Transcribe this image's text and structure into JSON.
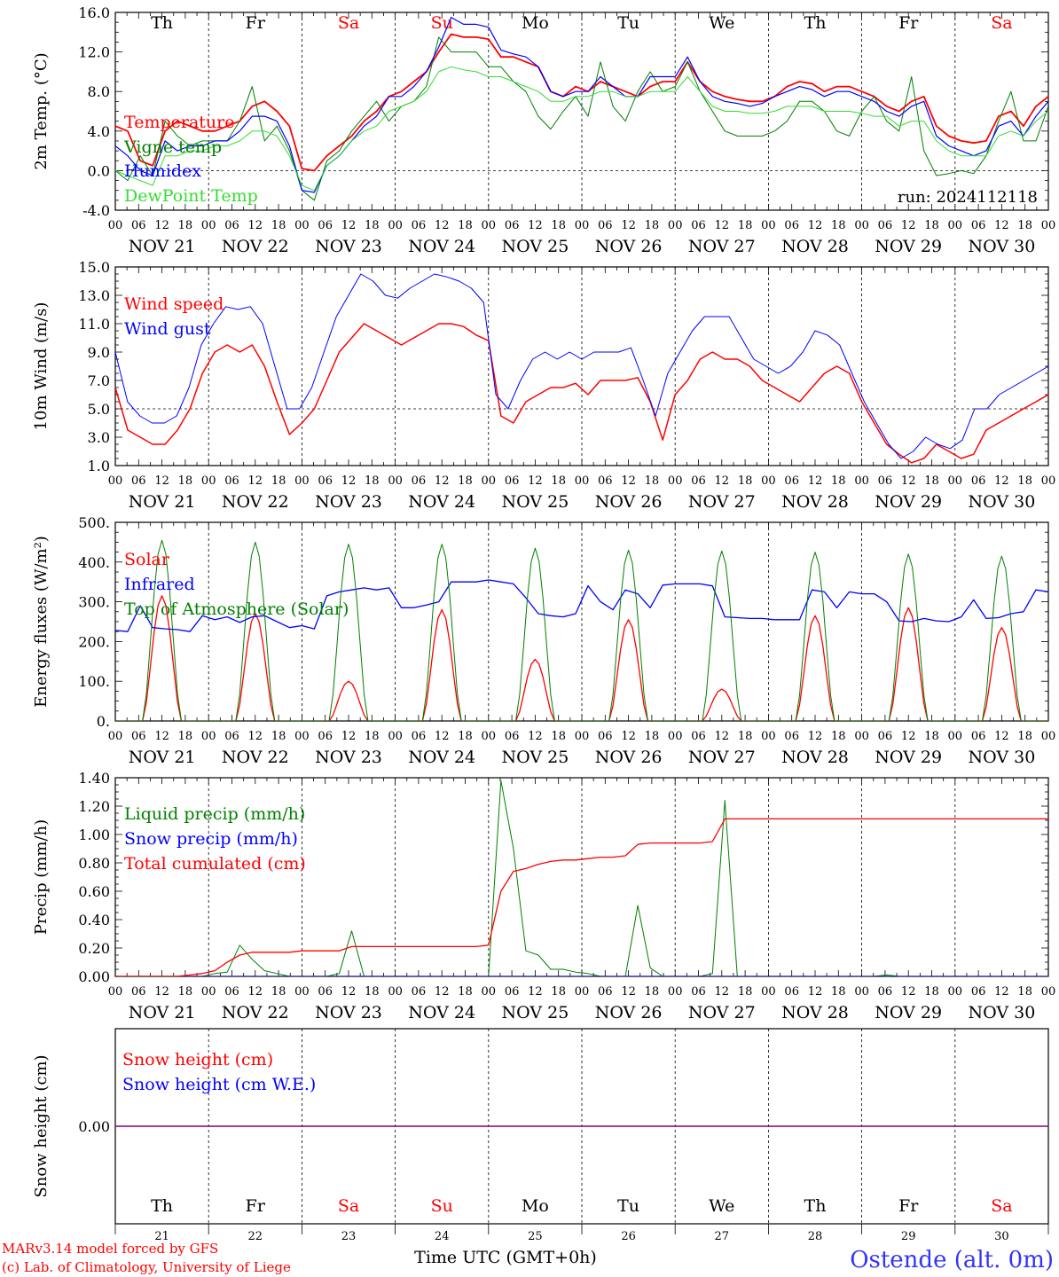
{
  "days": [
    "Th",
    "Fr",
    "Sa",
    "Su",
    "Mo",
    "Tu",
    "We",
    "Th",
    "Fr",
    "Sa"
  ],
  "weekend_flags": [
    false,
    false,
    true,
    true,
    false,
    false,
    false,
    false,
    false,
    true
  ],
  "dates": [
    "NOV 21",
    "NOV 22",
    "NOV 23",
    "NOV 24",
    "NOV 25",
    "NOV 26",
    "NOV 27",
    "NOV 28",
    "NOV 29",
    "NOV 30"
  ],
  "day_numbers": [
    "21",
    "22",
    "23",
    "24",
    "25",
    "26",
    "27",
    "28",
    "29",
    "30"
  ],
  "hour_ticks": [
    "00",
    "06",
    "12",
    "18"
  ],
  "hour_tick_last": "00",
  "colors": {
    "red": "#ff0000",
    "darkgreen": "#007f00",
    "blue": "#0000ff",
    "lightgreen": "#33dd33",
    "purple": "#7f007f"
  },
  "run_label": "run: 2024112118",
  "footer": {
    "credit1": "MARv3.14 model forced by GFS",
    "credit2": "(c) Lab. of Climatology, University of Liege",
    "xlabel": "Time UTC (GMT+0h)",
    "station": "Ostende (alt. 0m)"
  },
  "chart_data": [
    {
      "type": "line",
      "id": "temp",
      "ylabel": "2m Temp. (°C)",
      "ylim": [
        -4,
        16
      ],
      "yticks": [
        "-4.0",
        "0.0",
        "4.0",
        "8.0",
        "12.0",
        "16.0"
      ],
      "ytick_values": [
        -4,
        0,
        4,
        8,
        12,
        16
      ],
      "ref_line": 0,
      "x_hours_step": 6,
      "series": [
        {
          "name": "Temperature",
          "color": "red",
          "width": 1.8,
          "values": [
            4.5,
            4,
            1,
            0.5,
            4,
            5,
            4.5,
            4,
            4,
            4.5,
            5,
            6.5,
            7,
            6,
            4.5,
            0.2,
            0,
            1.5,
            2.5,
            3.5,
            5,
            6,
            7.5,
            8,
            9,
            10,
            12,
            13.8,
            13.5,
            13.5,
            13.3,
            11.5,
            11.5,
            11,
            10.5,
            8,
            7.5,
            8.5,
            8,
            9,
            8.5,
            8,
            7.5,
            8.5,
            9,
            9,
            11,
            9,
            8,
            7.5,
            7.2,
            7,
            7,
            7.5,
            8.5,
            9,
            8.8,
            8,
            8.5,
            8.5,
            8,
            7.5,
            6.5,
            6,
            7,
            7.5,
            4.5,
            3.5,
            3,
            2.8,
            3,
            5.5,
            6,
            4.5,
            6.5,
            7.5
          ]
        },
        {
          "name": "Vigne temp",
          "color": "darkgreen",
          "width": 1.0,
          "values": [
            0,
            -1,
            1.5,
            -0.5,
            5,
            3.5,
            2.5,
            3,
            3,
            3,
            5,
            8.5,
            3,
            4.5,
            2,
            -2,
            -3,
            1,
            2,
            4,
            5.5,
            7,
            5,
            6.5,
            7,
            8.5,
            13.5,
            12,
            12,
            12,
            10.5,
            10.5,
            9,
            8,
            5.5,
            4.2,
            6,
            7.5,
            5.5,
            11,
            6.5,
            5,
            8,
            10,
            8,
            8.5,
            11,
            8,
            6,
            4,
            3.5,
            3.5,
            3.5,
            4,
            5,
            7,
            7,
            6,
            4,
            3.5,
            6,
            7.5,
            5,
            4,
            9.5,
            2,
            -0.5,
            -0.3,
            0,
            -0.3,
            1.5,
            5,
            8,
            3,
            3,
            6.5
          ]
        },
        {
          "name": "Humidex",
          "color": "blue",
          "width": 1.2,
          "values": [
            2.5,
            1.5,
            0,
            -0.5,
            3,
            2,
            2.5,
            2.5,
            3,
            3,
            4,
            5.5,
            5.5,
            5,
            2.5,
            -2,
            -2.2,
            0.5,
            1.5,
            3,
            4.5,
            5.5,
            7.5,
            7.5,
            8.5,
            10,
            12.5,
            15.5,
            14.8,
            14.8,
            14.5,
            12.2,
            11.8,
            11.5,
            10.5,
            8,
            7.5,
            8,
            8,
            9.5,
            8.5,
            7.5,
            7.5,
            9.5,
            9.5,
            9.5,
            11.5,
            9,
            7.5,
            7,
            6.8,
            6.5,
            6.8,
            7.5,
            8,
            8.5,
            8.2,
            7.5,
            8,
            8,
            7.5,
            7,
            6,
            5.5,
            6.5,
            7,
            3.5,
            2.5,
            2,
            1.5,
            2,
            4.5,
            5,
            3.5,
            5.5,
            7
          ]
        },
        {
          "name": "DewPoint Temp",
          "color": "lightgreen",
          "width": 1.0,
          "values": [
            0,
            -0.5,
            -1,
            -1.5,
            1.5,
            1.5,
            2,
            2,
            2.5,
            2.5,
            3,
            4,
            4,
            3.5,
            1.5,
            -1.5,
            -2,
            0.5,
            1.5,
            3,
            4,
            4.5,
            6,
            6.5,
            7,
            8,
            10,
            10.5,
            10.2,
            10,
            9.5,
            9.5,
            9,
            8.5,
            8,
            7,
            7,
            7.5,
            7.5,
            8,
            8,
            7.5,
            7.5,
            8,
            8,
            8,
            9.5,
            8,
            6.5,
            6,
            6,
            5.8,
            5.8,
            6,
            6.5,
            6.5,
            6.5,
            6,
            6,
            6,
            5.8,
            5.5,
            5.5,
            4.5,
            5,
            5,
            3,
            2,
            1.5,
            1.5,
            1.5,
            3.5,
            4,
            3.5,
            5,
            6
          ]
        }
      ]
    },
    {
      "type": "line",
      "id": "wind",
      "ylabel": "10m Wind (m/s)",
      "ylim": [
        1,
        15
      ],
      "yticks": [
        "1.0",
        "3.0",
        "5.0",
        "7.0",
        "9.0",
        "11.0",
        "13.0",
        "15.0"
      ],
      "ytick_values": [
        1,
        3,
        5,
        7,
        9,
        11,
        13,
        15
      ],
      "ref_line": 5,
      "x_hours_step": 6,
      "series": [
        {
          "name": "Wind speed",
          "color": "red",
          "width": 1.5,
          "values": [
            6.5,
            3.5,
            3,
            2.5,
            2.5,
            3.5,
            5,
            7.5,
            9,
            9.5,
            9,
            9.5,
            8,
            5.5,
            3.2,
            4,
            5,
            7,
            9,
            10,
            11,
            10.5,
            10,
            9.5,
            10,
            10.5,
            11,
            11,
            10.8,
            10.2,
            9.8,
            4.5,
            4,
            5.5,
            6,
            6.5,
            6.5,
            6.8,
            6,
            7,
            7,
            7,
            7.2,
            5.5,
            2.8,
            6,
            7,
            8.5,
            9,
            8.5,
            8.5,
            8,
            7,
            6.5,
            6,
            5.5,
            6.5,
            7.5,
            8,
            7.5,
            5.5,
            4,
            2.5,
            1.8,
            1.2,
            1.5,
            2.5,
            2,
            1.5,
            1.8,
            3.5,
            4,
            4.5,
            5,
            5.5,
            6
          ]
        },
        {
          "name": "Wind gust",
          "color": "blue",
          "width": 1.0,
          "values": [
            9,
            5.5,
            4.5,
            4,
            4,
            4.5,
            6.5,
            9.5,
            11,
            12.2,
            12,
            12.2,
            11,
            8,
            5,
            5,
            6.5,
            9,
            11.5,
            13,
            14.5,
            14,
            13,
            12.8,
            13.5,
            14,
            14.5,
            14.3,
            14,
            13.5,
            12.5,
            6,
            5,
            7,
            8.5,
            9,
            8.5,
            9,
            8.5,
            9,
            9,
            9,
            9.3,
            7,
            4.5,
            7.5,
            9,
            10.5,
            11.5,
            11.5,
            11.5,
            10,
            8.5,
            8,
            7.5,
            8,
            9,
            10.5,
            10.2,
            9.5,
            7.5,
            5.5,
            4,
            2.5,
            1.5,
            2,
            3,
            2.5,
            2.2,
            2.8,
            5,
            5,
            6,
            6.5,
            7,
            7.5,
            8
          ]
        }
      ]
    },
    {
      "type": "line",
      "id": "energy",
      "ylabel": "Energy fluxes (W/m²)",
      "ylim": [
        0,
        500
      ],
      "yticks": [
        "0.",
        "100.",
        "200.",
        "300.",
        "400.",
        "500."
      ],
      "ytick_values": [
        0,
        100,
        200,
        300,
        400,
        500
      ],
      "ref_line": null,
      "x_hours_step": 6,
      "series": [
        {
          "name": "Solar",
          "color": "red",
          "width": 1.3,
          "day_peaks": [
            315,
            270,
            100,
            280,
            155,
            255,
            80,
            265,
            285,
            235
          ]
        },
        {
          "name": "Infrared",
          "color": "blue",
          "width": 1.3,
          "values": [
            228,
            225,
            290,
            235,
            232,
            230,
            225,
            265,
            255,
            262,
            248,
            262,
            265,
            250,
            235,
            240,
            232,
            315,
            325,
            330,
            335,
            330,
            335,
            285,
            285,
            292,
            300,
            350,
            350,
            350,
            355,
            350,
            345,
            310,
            270,
            265,
            262,
            270,
            340,
            300,
            280,
            330,
            320,
            285,
            342,
            345,
            345,
            345,
            340,
            262,
            260,
            258,
            258,
            255,
            255,
            255,
            330,
            325,
            285,
            325,
            320,
            320,
            300,
            252,
            250,
            258,
            252,
            250,
            262,
            305,
            258,
            260,
            270,
            275,
            330,
            325
          ]
        },
        {
          "name": "Top of Atmosphere (Solar)",
          "color": "darkgreen",
          "width": 1.0,
          "day_peaks": [
            455,
            450,
            445,
            445,
            435,
            430,
            428,
            425,
            420,
            415
          ]
        }
      ]
    },
    {
      "type": "line",
      "id": "precip",
      "ylabel": "Precip (mm/h)",
      "ylim": [
        0,
        1.4
      ],
      "yticks": [
        "0.00",
        "0.20",
        "0.40",
        "0.60",
        "0.80",
        "1.00",
        "1.20",
        "1.40"
      ],
      "ytick_values": [
        0,
        0.2,
        0.4,
        0.6,
        0.8,
        1.0,
        1.2,
        1.4
      ],
      "ref_line": null,
      "x_hours_step": 6,
      "series": [
        {
          "name": "Liquid precip (mm/h)",
          "color": "darkgreen",
          "width": 1.0,
          "values": [
            0,
            0,
            0,
            0,
            0,
            0,
            0,
            0,
            0.02,
            0.03,
            0.22,
            0.12,
            0.04,
            0.02,
            0,
            0,
            0,
            0,
            0.02,
            0.32,
            0,
            0,
            0,
            0,
            0,
            0,
            0,
            0,
            0,
            0,
            0,
            1.38,
            0.9,
            0.18,
            0.15,
            0.05,
            0.05,
            0.03,
            0.02,
            0,
            0,
            0,
            0.5,
            0.06,
            0,
            0,
            0,
            0,
            0.02,
            1.24,
            0,
            0,
            0,
            0,
            0,
            0,
            0,
            0,
            0,
            0,
            0,
            0,
            0.01,
            0,
            0,
            0,
            0,
            0,
            0,
            0,
            0,
            0,
            0,
            0,
            0,
            0
          ]
        },
        {
          "name": "Snow precip (mm/h)",
          "color": "blue",
          "width": 1.0,
          "values": [
            0,
            0,
            0,
            0,
            0,
            0,
            0,
            0,
            0,
            0,
            0,
            0,
            0,
            0,
            0,
            0,
            0,
            0,
            0,
            0,
            0,
            0,
            0,
            0,
            0,
            0,
            0,
            0,
            0,
            0,
            0,
            0,
            0,
            0,
            0,
            0,
            0,
            0,
            0,
            0,
            0,
            0,
            0,
            0,
            0,
            0,
            0,
            0,
            0,
            0,
            0,
            0,
            0,
            0,
            0,
            0,
            0,
            0,
            0,
            0,
            0,
            0,
            0,
            0,
            0,
            0,
            0,
            0,
            0,
            0,
            0,
            0,
            0,
            0,
            0,
            0
          ]
        },
        {
          "name": "Total cumulated (cm)",
          "color": "red",
          "width": 1.3,
          "values": [
            0,
            0,
            0,
            0,
            0,
            0,
            0.01,
            0.02,
            0.04,
            0.1,
            0.15,
            0.17,
            0.17,
            0.17,
            0.17,
            0.18,
            0.18,
            0.18,
            0.18,
            0.21,
            0.21,
            0.21,
            0.21,
            0.21,
            0.21,
            0.21,
            0.21,
            0.21,
            0.21,
            0.21,
            0.22,
            0.6,
            0.74,
            0.76,
            0.79,
            0.81,
            0.82,
            0.82,
            0.83,
            0.84,
            0.84,
            0.85,
            0.93,
            0.94,
            0.94,
            0.94,
            0.94,
            0.94,
            0.95,
            1.11,
            1.11,
            1.11,
            1.11,
            1.11,
            1.11,
            1.11,
            1.11,
            1.11,
            1.11,
            1.11,
            1.11,
            1.11,
            1.11,
            1.11,
            1.11,
            1.11,
            1.11,
            1.11,
            1.11,
            1.11,
            1.11,
            1.11,
            1.11,
            1.11,
            1.11,
            1.11
          ]
        }
      ]
    },
    {
      "type": "line",
      "id": "snow",
      "ylabel": "Snow height (cm)",
      "ylim": [
        -1,
        1
      ],
      "yticks": [
        "0.00"
      ],
      "ytick_values": [
        0
      ],
      "ref_line": null,
      "x_hours_step": 6,
      "series": [
        {
          "name": "Snow height (cm)",
          "color": "red",
          "width": 1.0,
          "values": [
            0,
            0
          ]
        },
        {
          "name": "Snow height (cm W.E.)",
          "color": "blue",
          "width": 1.0,
          "values": [
            0,
            0
          ]
        }
      ]
    }
  ]
}
